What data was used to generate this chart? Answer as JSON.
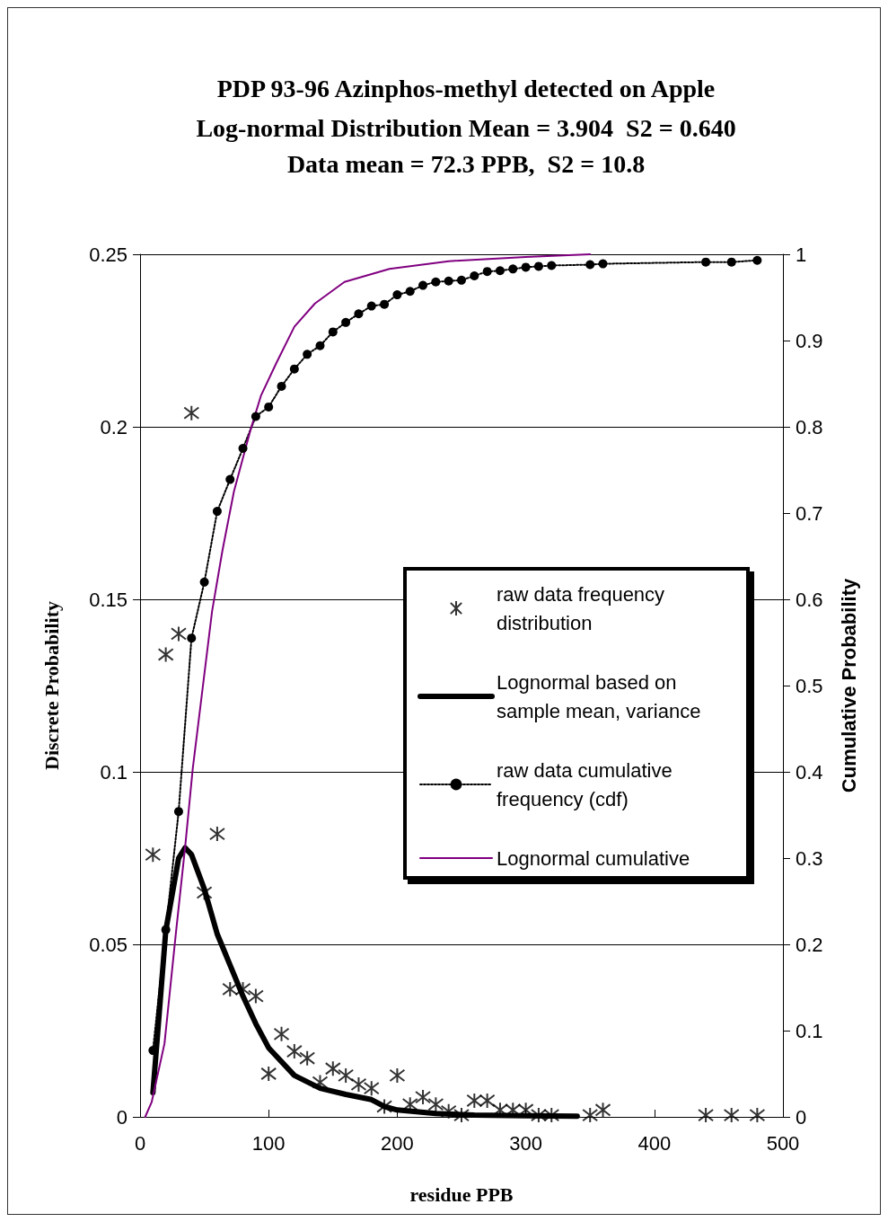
{
  "chart_data": {
    "type": "line",
    "title": "PDP 93-96 Azinphos-methyl detected on Apple",
    "subtitle": "Log-normal Distribution Mean = 3.904  S2 = 0.640\nData mean = 72.3 PPB,  S2 = 10.8",
    "xlabel": "residue PPB",
    "ylabel": "Discrete Probability",
    "y2label": "Cumulative Probability",
    "xlim": [
      0,
      500
    ],
    "xticks": [
      0,
      100,
      200,
      300,
      400,
      500
    ],
    "ylim": [
      0,
      0.25
    ],
    "yticks": [
      0,
      0.05,
      0.1,
      0.15,
      0.2,
      0.25
    ],
    "y2lim": [
      0,
      1
    ],
    "y2ticks": [
      0,
      0.1,
      0.2,
      0.3,
      0.4,
      0.5,
      0.6,
      0.7,
      0.8,
      0.9,
      1
    ],
    "grid": "y",
    "legend": "right",
    "series": [
      {
        "name": "raw data frequency distribution",
        "type": "scatter",
        "marker": "cross",
        "color": "#000000",
        "x": [
          10,
          20,
          30,
          40,
          50,
          60,
          70,
          80,
          90,
          100,
          110,
          120,
          130,
          140,
          150,
          160,
          170,
          180,
          190,
          200,
          210,
          220,
          230,
          240,
          250,
          260,
          270,
          280,
          290,
          300,
          310,
          320,
          350,
          360,
          440,
          460,
          480
        ],
        "values": [
          0.076,
          0.134,
          0.14,
          0.204,
          0.065,
          0.082,
          0.037,
          0.037,
          0.035,
          0.0125,
          0.024,
          0.019,
          0.017,
          0.01,
          0.014,
          0.012,
          0.0094,
          0.0083,
          0.003,
          0.012,
          0.0036,
          0.0057,
          0.0036,
          0.0016,
          0.0005,
          0.0047,
          0.0047,
          0.002,
          0.002,
          0.002,
          0.0005,
          0.0005,
          0.0005,
          0.002,
          0.0005,
          0.0005,
          0.0005
        ]
      },
      {
        "name": "Lognormal based on sample mean, variance",
        "marker": "none",
        "line_style": "solid",
        "color": "#000000",
        "x": [
          10,
          20,
          30,
          35,
          40,
          50,
          60,
          70,
          80,
          90,
          100,
          120,
          140,
          160,
          180,
          190,
          200,
          230,
          260,
          300,
          340
        ],
        "values": [
          0.007,
          0.054,
          0.075,
          0.078,
          0.076,
          0.066,
          0.053,
          0.044,
          0.035,
          0.027,
          0.02,
          0.012,
          0.0083,
          0.0065,
          0.005,
          0.003,
          0.002,
          0.001,
          0.0005,
          0.0003,
          0.0002
        ]
      },
      {
        "name": "raw data cumulative frequency (cdf)",
        "axis": "y2",
        "marker": "circle",
        "line_style": "dotted",
        "color": "#000000",
        "x": [
          10,
          20,
          30,
          40,
          50,
          60,
          70,
          80,
          90,
          100,
          110,
          120,
          130,
          140,
          150,
          160,
          170,
          180,
          190,
          200,
          210,
          220,
          230,
          240,
          250,
          260,
          270,
          280,
          290,
          300,
          310,
          320,
          350,
          360,
          440,
          460,
          480
        ],
        "values": [
          0.077,
          0.217,
          0.354,
          0.555,
          0.62,
          0.702,
          0.739,
          0.775,
          0.812,
          0.823,
          0.847,
          0.867,
          0.884,
          0.894,
          0.91,
          0.921,
          0.931,
          0.94,
          0.942,
          0.953,
          0.957,
          0.964,
          0.968,
          0.969,
          0.97,
          0.975,
          0.98,
          0.981,
          0.983,
          0.985,
          0.986,
          0.987,
          0.988,
          0.989,
          0.991,
          0.991,
          0.993
        ]
      },
      {
        "name": "Lognormal cumulative",
        "axis": "y2",
        "marker": "none",
        "line_style": "solid",
        "color": "#800080",
        "x": [
          4,
          9,
          19,
          28,
          35,
          41,
          56,
          64,
          73,
          86,
          94,
          106,
          120,
          136,
          159,
          194,
          240,
          300,
          350
        ],
        "values": [
          0,
          0.017,
          0.085,
          0.215,
          0.312,
          0.404,
          0.586,
          0.656,
          0.725,
          0.797,
          0.836,
          0.874,
          0.916,
          0.943,
          0.968,
          0.983,
          0.992,
          0.997,
          1.0
        ]
      }
    ]
  }
}
